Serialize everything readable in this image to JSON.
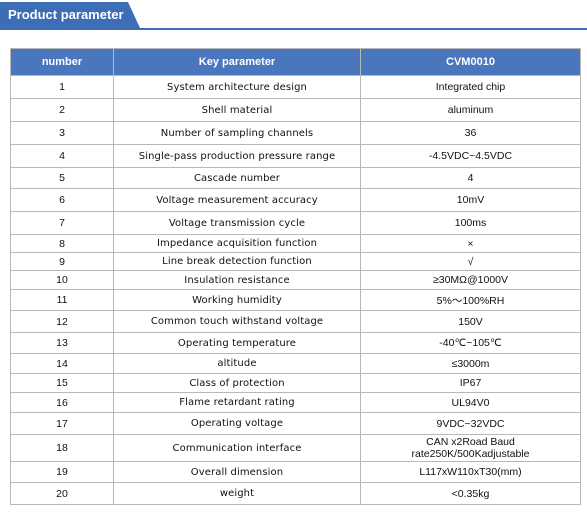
{
  "header": {
    "title": "Product parameter"
  },
  "table": {
    "columns": [
      "number",
      "Key parameter",
      "CVM0010"
    ],
    "rows": [
      {
        "n": "1",
        "param": "System architecture design",
        "value": "Integrated chip"
      },
      {
        "n": "2",
        "param": "Shell material",
        "value": "aluminum"
      },
      {
        "n": "3",
        "param": "Number of sampling channels",
        "value": "36"
      },
      {
        "n": "4",
        "param": "Single-pass production pressure range",
        "value": "-4.5VDC~4.5VDC"
      },
      {
        "n": "5",
        "param": "Cascade number",
        "value": "4"
      },
      {
        "n": "6",
        "param": "Voltage measurement accuracy",
        "value": "10mV"
      },
      {
        "n": "7",
        "param": "Voltage transmission cycle",
        "value": "100ms"
      },
      {
        "n": "8",
        "param": "Impedance acquisition function",
        "value": "×"
      },
      {
        "n": "9",
        "param": "Line break detection function",
        "value": "√"
      },
      {
        "n": "10",
        "param": "Insulation resistance",
        "value": "≥30MΩ@1000V"
      },
      {
        "n": "11",
        "param": "Working humidity",
        "value": "5%～100%RH"
      },
      {
        "n": "12",
        "param": "Common touch withstand voltage",
        "value": "150V"
      },
      {
        "n": "13",
        "param": "Operating temperature",
        "value": "-40℃~105℃"
      },
      {
        "n": "14",
        "param": "altitude",
        "value": "≤3000m"
      },
      {
        "n": "15",
        "param": "Class of protection",
        "value": "IP67"
      },
      {
        "n": "16",
        "param": "Flame retardant rating",
        "value": "UL94V0"
      },
      {
        "n": "17",
        "param": "Operating voltage",
        "value": "9VDC~32VDC"
      },
      {
        "n": "18",
        "param": "Communication interface",
        "value": "CAN x2Road  Baud rate250K/500Kadjustable"
      },
      {
        "n": "19",
        "param": "Overall dimension",
        "value": "L117xW110xT30(mm)"
      },
      {
        "n": "20",
        "param": "weight",
        "value": "<0.35kg"
      }
    ]
  }
}
